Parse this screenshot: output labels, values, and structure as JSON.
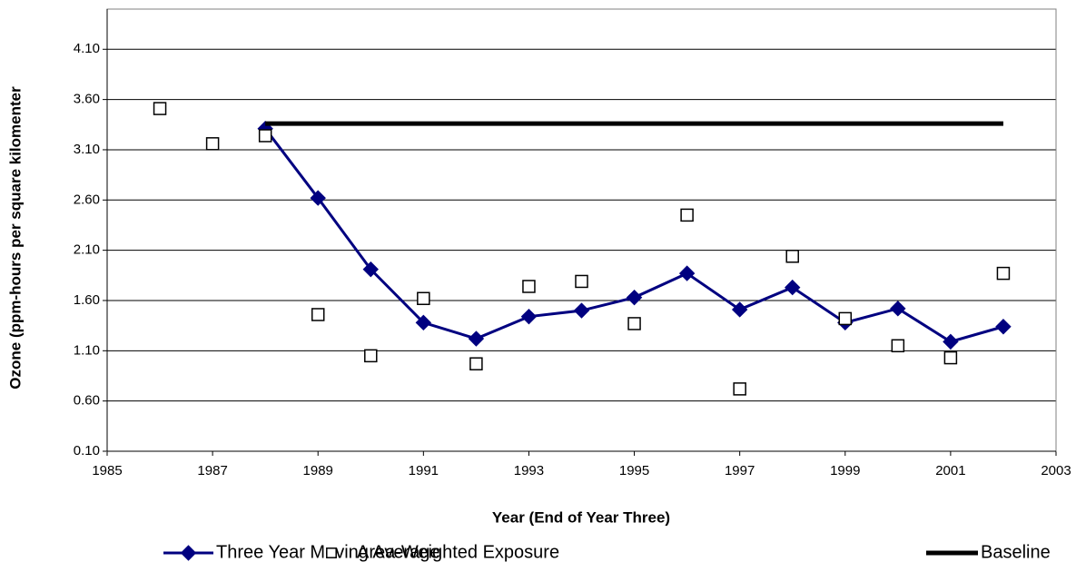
{
  "chart_data": {
    "type": "line",
    "x_label": "Year (End of  Year Three)",
    "y_label": "Ozone (ppm-hours per square kilomenter",
    "xlim": [
      1985,
      2003
    ],
    "xticks": [
      1985,
      1987,
      1989,
      1991,
      1993,
      1995,
      1997,
      1999,
      2001,
      2003
    ],
    "ylim": [
      0.1,
      4.5
    ],
    "yticks": [
      {
        "value": 0.1,
        "label": "0.10"
      },
      {
        "value": 0.6,
        "label": "0.60"
      },
      {
        "value": 1.1,
        "label": "1.10"
      },
      {
        "value": 1.6,
        "label": "1.60"
      },
      {
        "value": 2.1,
        "label": "2.10"
      },
      {
        "value": 2.6,
        "label": "2.60"
      },
      {
        "value": 3.1,
        "label": "3.10"
      },
      {
        "value": 3.6,
        "label": "3.60"
      },
      {
        "value": 4.1,
        "label": "4.10"
      }
    ],
    "grid": true,
    "legend": "bottom",
    "series": [
      {
        "name": "Three Year Moving Average",
        "color": "#000080",
        "line": true,
        "marker": "diamond",
        "x": [
          1988,
          1989,
          1990,
          1991,
          1992,
          1993,
          1994,
          1995,
          1996,
          1997,
          1998,
          1999,
          2000,
          2001,
          2002
        ],
        "values": [
          3.31,
          2.62,
          1.91,
          1.38,
          1.22,
          1.44,
          1.5,
          1.63,
          1.87,
          1.51,
          1.73,
          1.38,
          1.52,
          1.19,
          1.34
        ]
      },
      {
        "name": "Area-Weighted Exposure",
        "color": "#000000",
        "line": false,
        "marker": "square",
        "x": [
          1986,
          1987,
          1988,
          1989,
          1990,
          1991,
          1992,
          1993,
          1994,
          1995,
          1996,
          1997,
          1998,
          1999,
          2000,
          2001,
          2002
        ],
        "values": [
          3.51,
          3.16,
          3.24,
          1.46,
          1.05,
          1.62,
          0.97,
          1.74,
          1.79,
          1.37,
          2.45,
          0.72,
          2.04,
          1.42,
          1.15,
          1.03,
          1.87
        ]
      },
      {
        "name": "Baseline",
        "color": "#000000",
        "line": true,
        "marker": "none",
        "x": [
          1988,
          2002
        ],
        "values": [
          3.36,
          3.36
        ]
      }
    ]
  }
}
